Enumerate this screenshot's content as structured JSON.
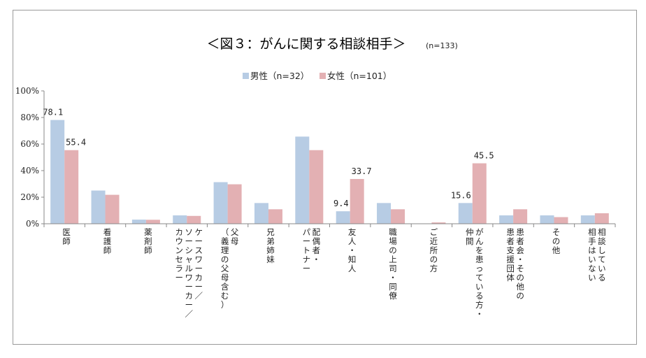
{
  "chart_data": {
    "type": "bar",
    "title": "＜図３：がんに関する相談相手＞",
    "subtitle": "(n=133)",
    "ylim": [
      0,
      100
    ],
    "yticks": [
      "0%",
      "20%",
      "40%",
      "60%",
      "80%",
      "100%"
    ],
    "categories": [
      [
        "医師"
      ],
      [
        "看護師"
      ],
      [
        "薬剤師"
      ],
      [
        "ケースワーカー／",
        "ソーシャルワーカー／",
        "カウンセラー"
      ],
      [
        "父母",
        "（義理の父母含む）"
      ],
      [
        "兄弟姉妹"
      ],
      [
        "配偶者・",
        "パートナー"
      ],
      [
        "友人・知人"
      ],
      [
        "職場の上司・同僚"
      ],
      [
        "ご近所の方"
      ],
      [
        "がんを患っている方・",
        "仲間"
      ],
      [
        "患者会・その他の",
        "患者支援団体"
      ],
      [
        "その他"
      ],
      [
        "相談している",
        "相手はいない"
      ]
    ],
    "series": [
      {
        "name": "男性（n=32）",
        "color": "#b7cce4",
        "values": [
          78.1,
          25.0,
          3.1,
          6.3,
          31.3,
          15.6,
          65.6,
          9.4,
          15.6,
          0.0,
          15.6,
          6.3,
          6.3,
          6.3
        ],
        "labels": [
          "78.1",
          null,
          null,
          null,
          null,
          null,
          null,
          "9.4",
          null,
          null,
          "15.6",
          null,
          null,
          null
        ]
      },
      {
        "name": "女性（n=101）",
        "color": "#e3b0b3",
        "values": [
          55.4,
          21.8,
          3.0,
          5.9,
          29.7,
          10.9,
          55.4,
          33.7,
          10.9,
          1.0,
          45.5,
          10.9,
          5.0,
          7.9
        ],
        "labels": [
          "55.4",
          null,
          null,
          null,
          null,
          null,
          null,
          "33.7",
          null,
          null,
          "45.5",
          null,
          null,
          null
        ]
      }
    ]
  }
}
